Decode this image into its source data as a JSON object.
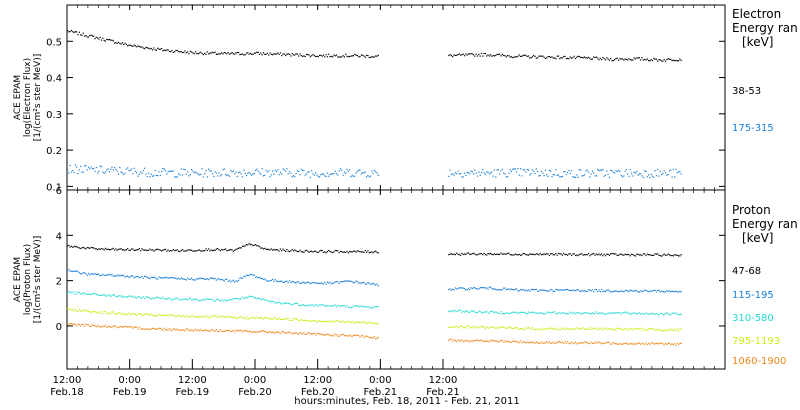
{
  "chart_data": [
    {
      "type": "scatter",
      "ylabel_lines": [
        "ACE EPAM",
        "log(Electron Flux)",
        "[1/(cm²s ster MeV)]"
      ],
      "ylim": [
        0.09,
        0.6
      ],
      "yticks": [
        {
          "v": 0.1,
          "label": "0.1"
        },
        {
          "v": 0.2,
          "label": "0.2"
        },
        {
          "v": 0.3,
          "label": "0.3"
        },
        {
          "v": 0.4,
          "label": "0.4"
        },
        {
          "v": 0.5,
          "label": "0.5"
        }
      ],
      "legend_title": [
        "Electron",
        "Energy ran",
        "[keV]"
      ],
      "series": [
        {
          "name": "38-53",
          "color": "#000000",
          "points": [
            [
              0,
              0.53
            ],
            [
              6,
              0.51
            ],
            [
              12,
              0.49
            ],
            [
              18,
              0.478
            ],
            [
              24,
              0.47
            ],
            [
              30,
              0.467
            ],
            [
              36,
              0.468
            ],
            [
              42,
              0.465
            ],
            [
              48,
              0.462
            ],
            [
              54,
              0.462
            ],
            [
              59,
              0.46
            ],
            [
              73,
              0.462
            ],
            [
              80,
              0.465
            ],
            [
              86,
              0.46
            ],
            [
              92,
              0.458
            ],
            [
              98,
              0.456
            ],
            [
              104,
              0.452
            ],
            [
              109,
              0.453
            ],
            [
              114,
              0.45
            ],
            [
              117,
              0.452
            ]
          ]
        },
        {
          "name": "175-315",
          "color": "#1a7fd6",
          "points": [
            [
              0,
              0.15
            ],
            [
              8,
              0.145
            ],
            [
              16,
              0.14
            ],
            [
              24,
              0.138
            ],
            [
              32,
              0.14
            ],
            [
              40,
              0.14
            ],
            [
              48,
              0.138
            ],
            [
              54,
              0.14
            ],
            [
              59,
              0.138
            ],
            [
              73,
              0.14
            ],
            [
              80,
              0.138
            ],
            [
              88,
              0.14
            ],
            [
              96,
              0.137
            ],
            [
              104,
              0.138
            ],
            [
              112,
              0.138
            ],
            [
              117,
              0.137
            ]
          ]
        }
      ]
    },
    {
      "type": "scatter",
      "ylabel_lines": [
        "ACE EPAM",
        "log(Proton Flux)",
        "[1/(cm²s ster MeV)]"
      ],
      "ylim": [
        -1.9,
        6
      ],
      "yticks": [
        {
          "v": 0,
          "label": "0"
        },
        {
          "v": 2,
          "label": "2"
        },
        {
          "v": 4,
          "label": "4"
        },
        {
          "v": 6,
          "label": "6"
        }
      ],
      "legend_title": [
        "Proton",
        "Energy ran",
        "[keV]"
      ],
      "series": [
        {
          "name": "47-68",
          "color": "#000000",
          "points": [
            [
              0,
              3.55
            ],
            [
              4,
              3.45
            ],
            [
              8,
              3.4
            ],
            [
              16,
              3.38
            ],
            [
              22,
              3.35
            ],
            [
              28,
              3.4
            ],
            [
              32,
              3.35
            ],
            [
              35,
              3.65
            ],
            [
              38,
              3.4
            ],
            [
              46,
              3.32
            ],
            [
              54,
              3.3
            ],
            [
              59,
              3.3
            ],
            [
              73,
              3.2
            ],
            [
              85,
              3.2
            ],
            [
              95,
              3.18
            ],
            [
              105,
              3.17
            ],
            [
              117,
              3.15
            ]
          ]
        },
        {
          "name": "115-195",
          "color": "#1a7fd6",
          "points": [
            [
              0,
              2.5
            ],
            [
              4,
              2.3
            ],
            [
              10,
              2.25
            ],
            [
              16,
              2.15
            ],
            [
              22,
              2.1
            ],
            [
              28,
              2.1
            ],
            [
              32,
              2.0
            ],
            [
              35,
              2.3
            ],
            [
              38,
              2.05
            ],
            [
              44,
              1.95
            ],
            [
              50,
              1.9
            ],
            [
              54,
              2.0
            ],
            [
              59,
              1.85
            ],
            [
              73,
              1.65
            ],
            [
              80,
              1.7
            ],
            [
              87,
              1.6
            ],
            [
              95,
              1.6
            ],
            [
              105,
              1.58
            ],
            [
              117,
              1.55
            ]
          ]
        },
        {
          "name": "310-580",
          "color": "#26d9cf",
          "points": [
            [
              0,
              1.5
            ],
            [
              6,
              1.4
            ],
            [
              12,
              1.3
            ],
            [
              18,
              1.25
            ],
            [
              24,
              1.2
            ],
            [
              30,
              1.15
            ],
            [
              35,
              1.3
            ],
            [
              40,
              1.05
            ],
            [
              46,
              0.95
            ],
            [
              52,
              0.9
            ],
            [
              59,
              0.85
            ],
            [
              73,
              0.7
            ],
            [
              82,
              0.62
            ],
            [
              90,
              0.6
            ],
            [
              100,
              0.6
            ],
            [
              110,
              0.58
            ],
            [
              117,
              0.55
            ]
          ]
        },
        {
          "name": "795-1193",
          "color": "#c8ee1a",
          "points": [
            [
              0,
              0.75
            ],
            [
              8,
              0.6
            ],
            [
              16,
              0.5
            ],
            [
              24,
              0.45
            ],
            [
              32,
              0.4
            ],
            [
              40,
              0.35
            ],
            [
              48,
              0.25
            ],
            [
              54,
              0.2
            ],
            [
              59,
              0.15
            ],
            [
              73,
              0.0
            ],
            [
              82,
              -0.05
            ],
            [
              90,
              -0.1
            ],
            [
              100,
              -0.1
            ],
            [
              110,
              -0.12
            ],
            [
              117,
              -0.15
            ]
          ]
        },
        {
          "name": "1060-1900",
          "color": "#ee8a1a",
          "points": [
            [
              0,
              0.1
            ],
            [
              8,
              0.0
            ],
            [
              16,
              -0.1
            ],
            [
              24,
              -0.15
            ],
            [
              32,
              -0.2
            ],
            [
              40,
              -0.25
            ],
            [
              48,
              -0.35
            ],
            [
              54,
              -0.4
            ],
            [
              59,
              -0.5
            ],
            [
              73,
              -0.6
            ],
            [
              82,
              -0.65
            ],
            [
              90,
              -0.7
            ],
            [
              100,
              -0.72
            ],
            [
              110,
              -0.75
            ],
            [
              117,
              -0.78
            ]
          ]
        }
      ]
    }
  ],
  "x_axis": {
    "range_hours": [
      0,
      126
    ],
    "data_range_hours": [
      [
        0,
        59.5
      ],
      [
        73,
        117.5
      ]
    ],
    "ticks": [
      {
        "h": 0,
        "time": "12:00",
        "date": "Feb.18"
      },
      {
        "h": 12,
        "time": "0:00",
        "date": "Feb.19"
      },
      {
        "h": 24,
        "time": "12:00",
        "date": "Feb.19"
      },
      {
        "h": 36,
        "time": "0:00",
        "date": "Feb.20"
      },
      {
        "h": 48,
        "time": "12:00",
        "date": "Feb.20"
      },
      {
        "h": 60,
        "time": "0:00",
        "date": "Feb.21"
      },
      {
        "h": 72,
        "time": "12:00",
        "date": "Feb.21"
      }
    ],
    "xlabel": "hours:minutes, Feb. 18, 2011 - Feb. 21, 2011"
  }
}
